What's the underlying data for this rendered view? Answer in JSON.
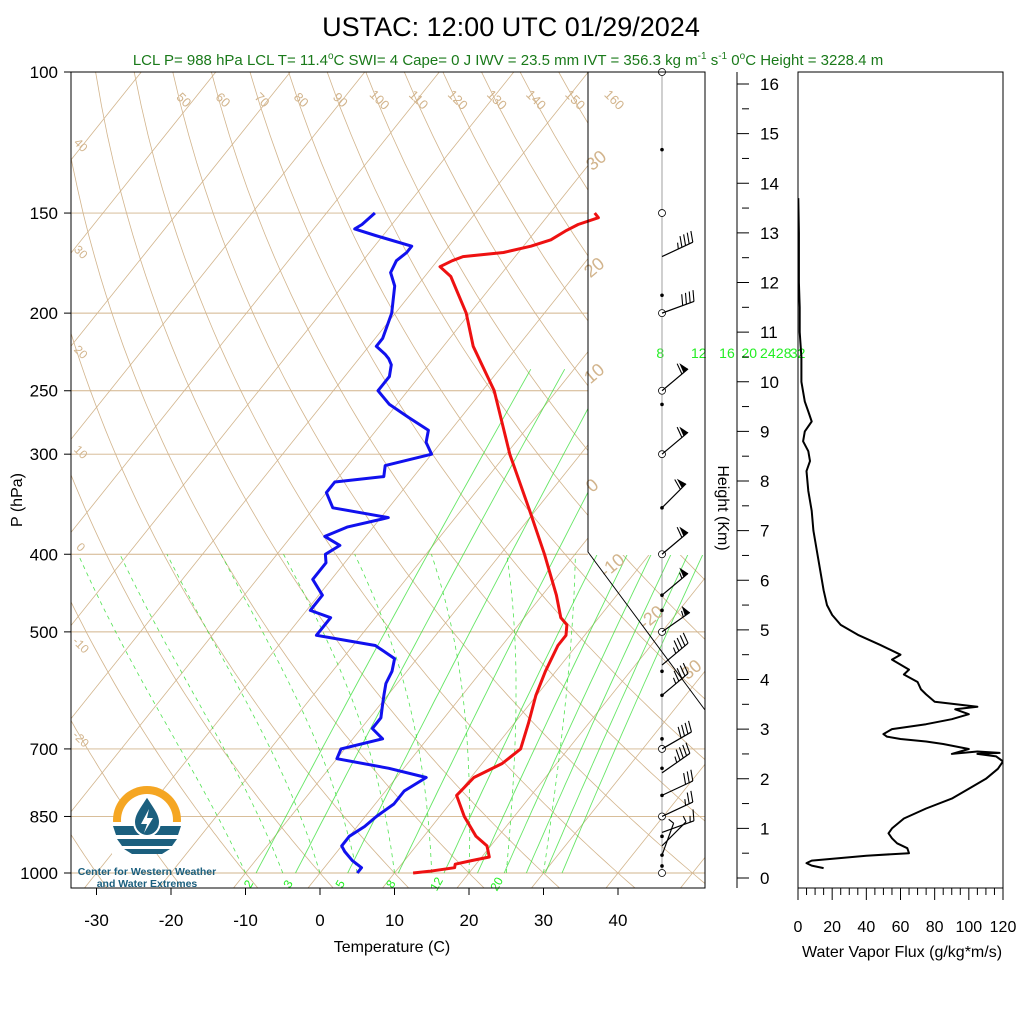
{
  "title": "USTAC: 12:00 UTC 01/29/2024",
  "stats_line": {
    "lcl_p": "LCL P= 988 hPa",
    "lcl_t_pre": "LCL T= 11.4",
    "lcl_t_unit": "C",
    "swi": "SWI= 4",
    "cape": "Cape= 0 J",
    "iwv": "IWV = 23.5 mm",
    "ivt_pre": "IVT = 356.3 kg m",
    "ivt_mid": " s",
    "ivt_exp1": "-1",
    "ivt_exp2": "-1",
    "freezing_pre": "0",
    "freezing_post": "C Height = 3228.4 m"
  },
  "colors": {
    "temperature": "#ee1111",
    "dewpoint": "#1111ee",
    "isotherm_adiabat": "#d2b48c",
    "mixing_ratio": "#33dd33",
    "stats_text": "#1a7a1a",
    "flux": "#000000",
    "logo_orange": "#f5a623",
    "logo_blue": "#1b5f7e"
  },
  "logo": {
    "name": "droplet-logo",
    "line1": "Center for Western Weather",
    "line2": "and Water Extremes"
  },
  "chart_data": [
    {
      "type": "line",
      "subtype": "skew-t log-p",
      "xlabel": "Temperature (C)",
      "ylabel": "P (hPa)",
      "xlim": [
        -35,
        50
      ],
      "ylim": [
        1000,
        100
      ],
      "x_ticks": [
        "-30",
        "-20",
        "-10",
        "0",
        "10",
        "20",
        "30",
        "40"
      ],
      "p_ticks": [
        "100",
        "150",
        "200",
        "250",
        "300",
        "400",
        "500",
        "700",
        "850",
        "1000"
      ],
      "isotherm_labels_top": [
        "50",
        "60",
        "70",
        "80",
        "90",
        "100",
        "110",
        "120",
        "130",
        "140",
        "150",
        "160"
      ],
      "isotherm_labels_left": [
        "40",
        "30",
        "20",
        "10",
        "0",
        "-10",
        "-20"
      ],
      "adiabat_labels_right": [
        "30",
        "20",
        "10",
        "0",
        "-10",
        "-20",
        "-30"
      ],
      "mixing_ratio_labels_top": [
        "8",
        "12",
        "16",
        "20",
        "24",
        "28",
        "32"
      ],
      "mixing_ratio_labels_bottom": [
        "2",
        "3",
        "5",
        "8",
        "12",
        "20"
      ],
      "series": [
        {
          "name": "temperature",
          "points": [
            [
              1000,
              12.5
            ],
            [
              995,
              14.5
            ],
            [
              985,
              17.5
            ],
            [
              975,
              17.2
            ],
            [
              965,
              19.0
            ],
            [
              955,
              21.0
            ],
            [
              925,
              19.5
            ],
            [
              900,
              17.0
            ],
            [
              850,
              13.3
            ],
            [
              800,
              10.0
            ],
            [
              760,
              10.4
            ],
            [
              730,
              12.7
            ],
            [
              700,
              13.6
            ],
            [
              650,
              11.9
            ],
            [
              600,
              9.9
            ],
            [
              560,
              8.6
            ],
            [
              520,
              7.5
            ],
            [
              505,
              7.5
            ],
            [
              490,
              6.5
            ],
            [
              480,
              4.9
            ],
            [
              450,
              1.9
            ],
            [
              400,
              -4.1
            ],
            [
              350,
              -11.2
            ],
            [
              300,
              -19.5
            ],
            [
              250,
              -28.4
            ],
            [
              220,
              -36.0
            ],
            [
              200,
              -40.5
            ],
            [
              180,
              -46.5
            ],
            [
              175,
              -49.0
            ],
            [
              172,
              -48.0
            ],
            [
              170,
              -47.0
            ],
            [
              168,
              -42.0
            ],
            [
              165,
              -39.0
            ],
            [
              162,
              -37.0
            ],
            [
              158,
              -36.0
            ],
            [
              155,
              -35.0
            ],
            [
              152,
              -33.0
            ],
            [
              150,
              -34.0
            ]
          ]
        },
        {
          "name": "dewpoint",
          "points": [
            [
              1000,
              5.0
            ],
            [
              985,
              5.0
            ],
            [
              965,
              3.0
            ],
            [
              940,
              1.0
            ],
            [
              925,
              0.0
            ],
            [
              900,
              0.0
            ],
            [
              875,
              1.0
            ],
            [
              850,
              1.5
            ],
            [
              820,
              2.5
            ],
            [
              790,
              2.5
            ],
            [
              760,
              4.0
            ],
            [
              740,
              -2.0
            ],
            [
              720,
              -10.0
            ],
            [
              700,
              -10.5
            ],
            [
              680,
              -6.0
            ],
            [
              660,
              -8.5
            ],
            [
              640,
              -8.5
            ],
            [
              620,
              -9.5
            ],
            [
              600,
              -10.5
            ],
            [
              580,
              -11.5
            ],
            [
              560,
              -12.0
            ],
            [
              540,
              -13.0
            ],
            [
              520,
              -17.0
            ],
            [
              505,
              -26.0
            ],
            [
              480,
              -26.0
            ],
            [
              470,
              -29.5
            ],
            [
              450,
              -29.5
            ],
            [
              430,
              -32.5
            ],
            [
              410,
              -32.5
            ],
            [
              400,
              -33.5
            ],
            [
              390,
              -32.5
            ],
            [
              380,
              -35.5
            ],
            [
              370,
              -33.5
            ],
            [
              360,
              -29.0
            ],
            [
              350,
              -37.5
            ],
            [
              335,
              -40.0
            ],
            [
              325,
              -40.0
            ],
            [
              320,
              -34.0
            ],
            [
              310,
              -35.0
            ],
            [
              300,
              -30.0
            ],
            [
              290,
              -32.0
            ],
            [
              280,
              -33.0
            ],
            [
              270,
              -37.0
            ],
            [
              260,
              -41.0
            ],
            [
              250,
              -44.0
            ],
            [
              240,
              -44.0
            ],
            [
              232,
              -45.0
            ],
            [
              228,
              -46.0
            ],
            [
              225,
              -47.0
            ],
            [
              220,
              -49.0
            ],
            [
              215,
              -49.0
            ],
            [
              200,
              -50.5
            ],
            [
              185,
              -53.0
            ],
            [
              178,
              -55.0
            ],
            [
              172,
              -55.5
            ],
            [
              168,
              -55.0
            ],
            [
              165,
              -55.0
            ],
            [
              160,
              -61.0
            ],
            [
              157,
              -64.5
            ],
            [
              155,
              -64.0
            ],
            [
              150,
              -63.5
            ]
          ]
        }
      ],
      "wind_barbs": [
        {
          "p": 950,
          "dir": 200,
          "speed": 5
        },
        {
          "p": 925,
          "dir": 225,
          "speed": 5
        },
        {
          "p": 890,
          "dir": 250,
          "speed": 15
        },
        {
          "p": 850,
          "dir": 245,
          "speed": 25
        },
        {
          "p": 800,
          "dir": 245,
          "speed": 30
        },
        {
          "p": 750,
          "dir": 235,
          "speed": 45
        },
        {
          "p": 700,
          "dir": 240,
          "speed": 40
        },
        {
          "p": 600,
          "dir": 230,
          "speed": 45
        },
        {
          "p": 550,
          "dir": 230,
          "speed": 45
        },
        {
          "p": 500,
          "dir": 235,
          "speed": 55
        },
        {
          "p": 450,
          "dir": 230,
          "speed": 55
        },
        {
          "p": 400,
          "dir": 230,
          "speed": 60
        },
        {
          "p": 350,
          "dir": 225,
          "speed": 60
        },
        {
          "p": 300,
          "dir": 230,
          "speed": 60
        },
        {
          "p": 250,
          "dir": 230,
          "speed": 60
        },
        {
          "p": 200,
          "dir": 250,
          "speed": 40
        },
        {
          "p": 170,
          "dir": 245,
          "speed": 45
        }
      ]
    },
    {
      "type": "line",
      "xlabel": "Water Vapor Flux (g/kg*m/s)",
      "ylabel": "Height (Km)",
      "xlim": [
        0,
        120
      ],
      "ylim": [
        -0.3,
        16.3
      ],
      "x_ticks": [
        "0",
        "20",
        "40",
        "60",
        "80",
        "100",
        "120"
      ],
      "y_ticks": [
        "0",
        "1",
        "2",
        "3",
        "4",
        "5",
        "6",
        "7",
        "8",
        "9",
        "10",
        "11",
        "12",
        "13",
        "14",
        "15",
        "16"
      ],
      "series": [
        {
          "name": "water vapor flux",
          "points": [
            [
              15,
              0.2
            ],
            [
              8,
              0.25
            ],
            [
              5,
              0.3
            ],
            [
              8,
              0.35
            ],
            [
              40,
              0.45
            ],
            [
              65,
              0.5
            ],
            [
              64,
              0.6
            ],
            [
              58,
              0.7
            ],
            [
              55,
              0.8
            ],
            [
              53,
              0.9
            ],
            [
              55,
              1.0
            ],
            [
              62,
              1.2
            ],
            [
              75,
              1.4
            ],
            [
              90,
              1.6
            ],
            [
              100,
              1.8
            ],
            [
              110,
              2.0
            ],
            [
              117,
              2.2
            ],
            [
              120,
              2.35
            ],
            [
              116,
              2.45
            ],
            [
              105,
              2.5
            ],
            [
              118,
              2.52
            ],
            [
              105,
              2.55
            ],
            [
              90,
              2.5
            ],
            [
              100,
              2.6
            ],
            [
              85,
              2.7
            ],
            [
              75,
              2.75
            ],
            [
              60,
              2.8
            ],
            [
              52,
              2.85
            ],
            [
              50,
              2.9
            ],
            [
              55,
              3.0
            ],
            [
              75,
              3.1
            ],
            [
              90,
              3.2
            ],
            [
              100,
              3.3
            ],
            [
              92,
              3.4
            ],
            [
              105,
              3.45
            ],
            [
              80,
              3.55
            ],
            [
              75,
              3.7
            ],
            [
              72,
              3.8
            ],
            [
              70,
              3.95
            ],
            [
              62,
              4.1
            ],
            [
              65,
              4.2
            ],
            [
              55,
              4.4
            ],
            [
              60,
              4.5
            ],
            [
              48,
              4.7
            ],
            [
              35,
              4.9
            ],
            [
              25,
              5.1
            ],
            [
              20,
              5.3
            ],
            [
              17,
              5.5
            ],
            [
              15,
              5.8
            ],
            [
              13,
              6.2
            ],
            [
              11,
              6.6
            ],
            [
              9,
              7.0
            ],
            [
              8,
              7.4
            ],
            [
              6,
              7.8
            ],
            [
              5,
              8.2
            ],
            [
              7,
              8.4
            ],
            [
              6,
              8.6
            ],
            [
              3,
              8.8
            ],
            [
              4,
              9.0
            ],
            [
              8,
              9.2
            ],
            [
              6,
              9.4
            ],
            [
              4,
              9.6
            ],
            [
              3,
              9.8
            ],
            [
              2,
              10.0
            ],
            [
              2,
              10.5
            ],
            [
              1,
              11.0
            ],
            [
              1,
              11.5
            ],
            [
              0.5,
              12.0
            ],
            [
              0.5,
              13.0
            ],
            [
              0.2,
              13.7
            ]
          ]
        }
      ]
    }
  ]
}
